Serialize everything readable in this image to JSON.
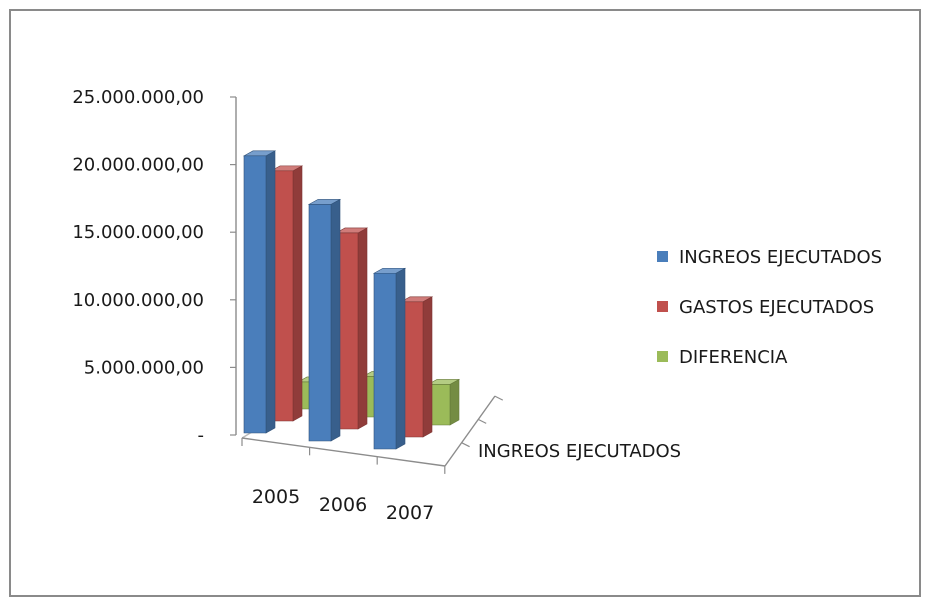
{
  "chart_data": {
    "type": "bar",
    "three_d": true,
    "categories": [
      "2005",
      "2006",
      "2007"
    ],
    "depth_axis_label": "INGREOS EJECUTADOS",
    "y_ticks": [
      "25.000.000,00",
      "20.000.000,00",
      "15.000.000,00",
      "10.000.000,00",
      "5.000.000,00",
      "-"
    ],
    "ylim": [
      0,
      25000000
    ],
    "series": [
      {
        "name": "INGREOS EJECUTADOS",
        "color": "#4a7ebb",
        "values": [
          20500000,
          17500000,
          13000000
        ]
      },
      {
        "name": "GASTOS EJECUTADOS",
        "color": "#c0504d",
        "values": [
          18500000,
          14500000,
          10000000
        ]
      },
      {
        "name": "DIFERENCIA",
        "color": "#9bbb59",
        "values": [
          2000000,
          3000000,
          3000000
        ]
      }
    ],
    "legend_position": "right",
    "grid": false
  }
}
